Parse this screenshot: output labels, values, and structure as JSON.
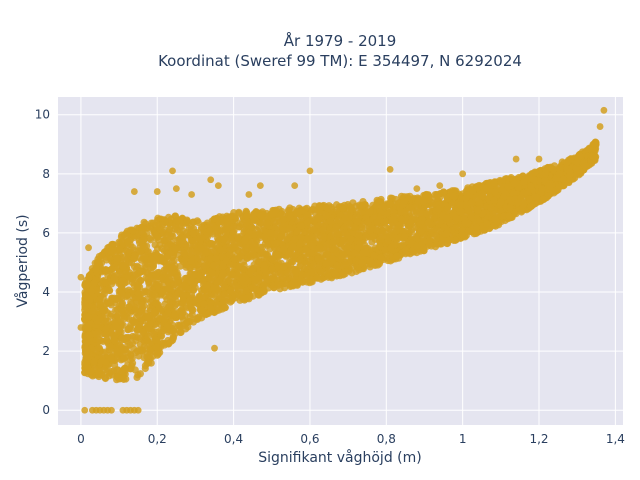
{
  "chart_data": {
    "type": "scatter",
    "title": "År 1979 - 2019",
    "subtitle": "Koordinat (Sweref 99 TM): E 354497, N 6292024",
    "xlabel": "Signifikant våghöjd (m)",
    "ylabel": "Vågperiod (s)",
    "xlim": [
      -0.06,
      1.42
    ],
    "ylim": [
      -0.5,
      10.6
    ],
    "x_ticks": [
      0,
      0.2,
      0.4,
      0.6,
      0.8,
      1,
      1.2,
      1.4
    ],
    "x_tick_labels": [
      "0",
      "0,2",
      "0,4",
      "0,6",
      "0,8",
      "1",
      "1,2",
      "1,4"
    ],
    "y_ticks": [
      0,
      2,
      4,
      6,
      8,
      10
    ],
    "y_tick_labels": [
      "0",
      "2",
      "4",
      "6",
      "8",
      "10"
    ],
    "grid": true,
    "legend": "none",
    "colors": {
      "marker": "#d4a020",
      "plot_bg": "#e5e5f0",
      "grid": "#ffffff",
      "text": "#2a3f5f"
    },
    "series": [
      {
        "density_envelope": {
          "x": [
            0.01,
            0.05,
            0.1,
            0.15,
            0.2,
            0.25,
            0.3,
            0.35,
            0.4,
            0.5,
            0.6,
            0.7,
            0.8,
            0.9,
            1.0,
            1.1,
            1.2,
            1.3,
            1.35
          ],
          "y_lower": [
            1.2,
            1.1,
            1.0,
            1.1,
            1.8,
            2.5,
            3.0,
            3.3,
            3.6,
            4.0,
            4.3,
            4.6,
            5.0,
            5.4,
            5.8,
            6.3,
            7.0,
            7.9,
            8.5
          ],
          "y_upper": [
            4.3,
            5.3,
            5.9,
            6.3,
            6.5,
            6.6,
            6.4,
            6.5,
            6.7,
            6.8,
            6.9,
            7.0,
            7.2,
            7.3,
            7.5,
            7.8,
            8.1,
            8.6,
            9.1
          ]
        },
        "points": [
          [
            0.01,
            0
          ],
          [
            0.03,
            0
          ],
          [
            0.04,
            0
          ],
          [
            0.05,
            0
          ],
          [
            0.06,
            0
          ],
          [
            0.07,
            0
          ],
          [
            0.08,
            0
          ],
          [
            0.11,
            0
          ],
          [
            0.12,
            0
          ],
          [
            0.13,
            0
          ],
          [
            0.14,
            0
          ],
          [
            0.15,
            0
          ],
          [
            0.14,
            7.4
          ],
          [
            0.2,
            7.4
          ],
          [
            0.24,
            8.1
          ],
          [
            0.25,
            7.5
          ],
          [
            0.29,
            7.3
          ],
          [
            0.34,
            7.8
          ],
          [
            0.36,
            7.6
          ],
          [
            0.44,
            7.3
          ],
          [
            0.47,
            7.6
          ],
          [
            0.56,
            7.6
          ],
          [
            0.6,
            8.1
          ],
          [
            0.81,
            8.15
          ],
          [
            0.88,
            7.5
          ],
          [
            0.94,
            7.6
          ],
          [
            1.0,
            8.0
          ],
          [
            1.14,
            8.5
          ],
          [
            1.2,
            8.5
          ],
          [
            1.36,
            9.6
          ],
          [
            1.37,
            10.15
          ],
          [
            0.0,
            4.5
          ],
          [
            0.0,
            2.8
          ],
          [
            0.02,
            5.5
          ],
          [
            0.35,
            2.1
          ],
          [
            0.22,
            3.6
          ]
        ]
      }
    ]
  }
}
